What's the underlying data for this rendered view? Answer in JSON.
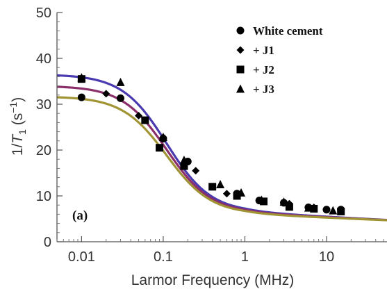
{
  "chart_data": {
    "type": "scatter",
    "panel_label": "(a)",
    "xlabel": "Larmor Frequency (MHz)",
    "ylabel_main": "1/",
    "ylabel_var": "T",
    "ylabel_sub": "1",
    "ylabel_unit": " (s",
    "ylabel_exp": "−1",
    "ylabel_close": ")",
    "x_scale": "log",
    "xlim": [
      0.005,
      55
    ],
    "ylim": [
      0,
      50
    ],
    "x_ticks": [
      {
        "value": 0.01,
        "label": "0.01"
      },
      {
        "value": 0.1,
        "label": "0.1"
      },
      {
        "value": 1,
        "label": "1"
      },
      {
        "value": 10,
        "label": "10"
      }
    ],
    "y_ticks": [
      {
        "value": 0,
        "label": "0"
      },
      {
        "value": 10,
        "label": "10"
      },
      {
        "value": 20,
        "label": "20"
      },
      {
        "value": 30,
        "label": "30"
      },
      {
        "value": 40,
        "label": "40"
      },
      {
        "value": 50,
        "label": "50"
      }
    ],
    "legend_position": "top-right",
    "series": [
      {
        "name": "White cement",
        "marker": "circle",
        "x": [
          0.01,
          0.03,
          0.1,
          0.2,
          0.8,
          1.5,
          3,
          6,
          10,
          15
        ],
        "y": [
          31.5,
          31.3,
          22.5,
          17.5,
          10.5,
          9.0,
          8.5,
          7.5,
          7.0,
          7.0
        ]
      },
      {
        "name": "+ J1",
        "marker": "diamond",
        "x": [
          0.02,
          0.05,
          0.1,
          0.25,
          0.6,
          1.5,
          3.5,
          7,
          15
        ],
        "y": [
          32.3,
          27.5,
          22.8,
          15.5,
          10.5,
          9.0,
          8.3,
          7.5,
          7.0
        ]
      },
      {
        "name": "+ J2",
        "marker": "square",
        "x": [
          0.01,
          0.06,
          0.09,
          0.18,
          0.4,
          0.8,
          1.7,
          3.5,
          7,
          15
        ],
        "y": [
          35.5,
          26.5,
          20.5,
          16.5,
          12.0,
          10.0,
          8.8,
          7.6,
          7.2,
          6.6
        ]
      },
      {
        "name": "+ J3",
        "marker": "triangle",
        "x": [
          0.01,
          0.03,
          0.1,
          0.18,
          0.5,
          0.9,
          1.6,
          3,
          6,
          12
        ],
        "y": [
          35.8,
          34.8,
          22.8,
          17.8,
          12.5,
          10.7,
          9.1,
          8.7,
          7.4,
          6.8
        ]
      }
    ],
    "fit_curves": [
      {
        "color": "#4a3ab0",
        "y0": 36.5,
        "yinf": 6.4,
        "fc": 0.11,
        "n": 1.6,
        "hf_slope": 0.95
      },
      {
        "color": "#8b2f6a",
        "y0": 34.0,
        "yinf": 6.2,
        "fc": 0.11,
        "n": 1.6,
        "hf_slope": 0.85
      },
      {
        "color": "#a09435",
        "y0": 31.7,
        "yinf": 6.0,
        "fc": 0.11,
        "n": 1.6,
        "hf_slope": 0.75
      }
    ]
  }
}
